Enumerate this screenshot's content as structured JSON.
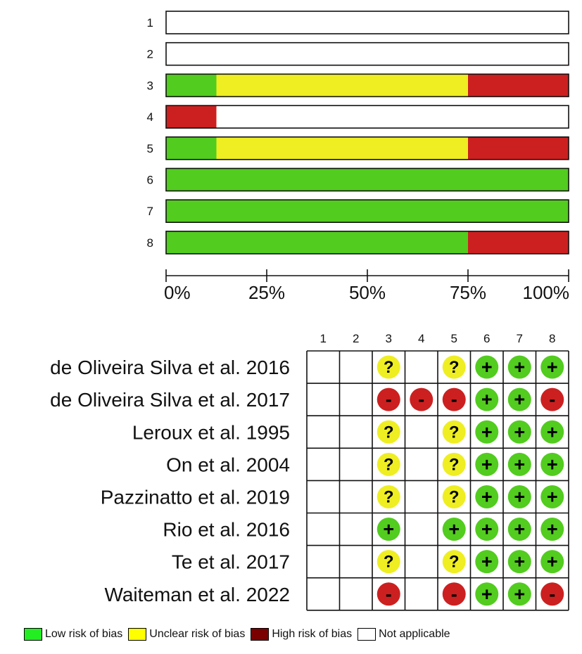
{
  "chart_data": [
    {
      "type": "bar",
      "orientation": "horizontal",
      "stacked": true,
      "categories": [
        "1",
        "2",
        "3",
        "4",
        "5",
        "6",
        "7",
        "8"
      ],
      "series": [
        {
          "key": "low",
          "values": [
            0,
            0,
            12.5,
            0,
            12.5,
            100,
            100,
            75
          ]
        },
        {
          "key": "unclear",
          "values": [
            0,
            0,
            62.5,
            0,
            62.5,
            0,
            0,
            0
          ]
        },
        {
          "key": "high",
          "values": [
            0,
            0,
            25,
            12.5,
            25,
            0,
            0,
            25
          ]
        },
        {
          "key": "na",
          "values": [
            100,
            100,
            0,
            87.5,
            0,
            0,
            0,
            0
          ]
        }
      ],
      "xlim": [
        0,
        100
      ],
      "x_ticks": [
        0,
        25,
        50,
        75,
        100
      ],
      "x_tick_labels": [
        "0%",
        "25%",
        "50%",
        "75%",
        "100%"
      ]
    },
    {
      "type": "table",
      "columns": [
        "1",
        "2",
        "3",
        "4",
        "5",
        "6",
        "7",
        "8"
      ],
      "rows": [
        {
          "study": "de Oliveira Silva et al. 2016",
          "judgements": [
            "",
            "",
            "?",
            "",
            "?",
            "+",
            "+",
            "+"
          ]
        },
        {
          "study": "de Oliveira Silva et al. 2017",
          "judgements": [
            "",
            "",
            "-",
            "-",
            "-",
            "+",
            "+",
            "-"
          ]
        },
        {
          "study": "Leroux et al. 1995",
          "judgements": [
            "",
            "",
            "?",
            "",
            "?",
            "+",
            "+",
            "+"
          ]
        },
        {
          "study": "On et al. 2004",
          "judgements": [
            "",
            "",
            "?",
            "",
            "?",
            "+",
            "+",
            "+"
          ]
        },
        {
          "study": "Pazzinatto et al. 2019",
          "judgements": [
            "",
            "",
            "?",
            "",
            "?",
            "+",
            "+",
            "+"
          ]
        },
        {
          "study": "Rio et al. 2016",
          "judgements": [
            "",
            "",
            "+",
            "",
            "+",
            "+",
            "+",
            "+"
          ]
        },
        {
          "study": "Te et al. 2017",
          "judgements": [
            "",
            "",
            "?",
            "",
            "?",
            "+",
            "+",
            "+"
          ]
        },
        {
          "study": "Waiteman et al. 2022",
          "judgements": [
            "",
            "",
            "-",
            "",
            "-",
            "+",
            "+",
            "-"
          ]
        }
      ]
    }
  ],
  "legend": [
    {
      "key": "low",
      "label": "Low risk of bias",
      "color": "#22ee22"
    },
    {
      "key": "unclear",
      "label": "Unclear risk of bias",
      "color": "#ffff00"
    },
    {
      "key": "high",
      "label": "High risk of bias",
      "color": "#7a0000"
    },
    {
      "key": "na",
      "label": "Not applicable",
      "color": "#ffffff"
    }
  ],
  "colors": {
    "bar_low": "#52cc1e",
    "bar_unclear": "#eeee22",
    "bar_high": "#cc2020",
    "bar_na": "#ffffff",
    "dot_low": "#52cc1e",
    "dot_unclear": "#eeee22",
    "dot_high": "#cc2020"
  }
}
